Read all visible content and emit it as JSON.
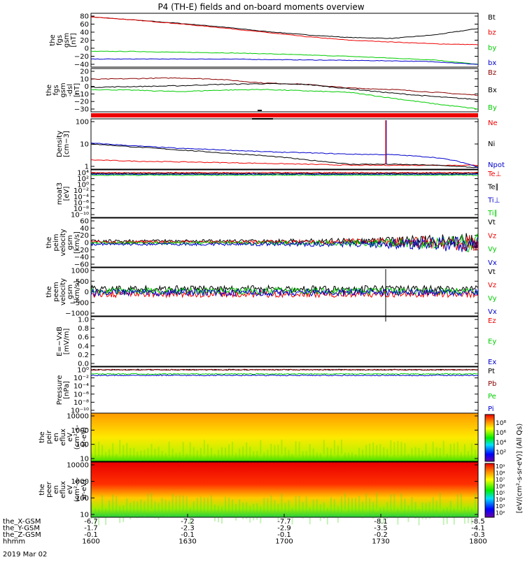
{
  "title": "P4 (TH-E) fields and on-board moments overview",
  "colors": {
    "black": "#000000",
    "red": "#ee0000",
    "green": "#00cc00",
    "blue": "#0000cc",
    "darkred": "#8b0000"
  },
  "chart_data": [
    {
      "type": "line",
      "ylabel": [
        "the",
        "fgs",
        "gsm",
        "[nT]"
      ],
      "yticks": [
        "80",
        "60",
        "40",
        "20",
        "0",
        "−20",
        "−40"
      ],
      "ylim": [
        -40,
        80
      ],
      "series": [
        {
          "name": "Bt",
          "color": "black",
          "values": [
            72,
            65,
            58,
            50,
            40,
            32,
            26,
            24,
            32,
            46
          ]
        },
        {
          "name": "bz",
          "color": "red",
          "values": [
            72,
            65,
            57,
            48,
            38,
            28,
            20,
            16,
            12,
            10
          ]
        },
        {
          "name": "by",
          "color": "green",
          "values": [
            -5,
            -5,
            -7,
            -8,
            -10,
            -13,
            -16,
            -20,
            -24,
            -34
          ]
        },
        {
          "name": "bx",
          "color": "blue",
          "values": [
            -22,
            -22,
            -22,
            -22,
            -23,
            -24,
            -25,
            -26,
            -28,
            -34
          ]
        }
      ]
    },
    {
      "type": "line",
      "ylabel": [
        "the",
        "fgs",
        "gsm",
        "-dsl",
        "[nT]"
      ],
      "yticks": [
        "20",
        "10",
        "0",
        "−10",
        "−20",
        "−30"
      ],
      "ylim": [
        -35,
        25
      ],
      "series": [
        {
          "name": "Bz",
          "color": "darkred",
          "values": [
            10,
            11,
            12,
            10,
            5,
            3,
            -2,
            -4,
            -8,
            -12
          ]
        },
        {
          "name": "Bx",
          "color": "black",
          "values": [
            -1,
            0,
            1,
            3,
            4,
            3,
            -3,
            -9,
            -14,
            -18
          ]
        },
        {
          "name": "By",
          "color": "green",
          "values": [
            -4,
            -5,
            -7,
            -5,
            -4,
            -6,
            -8,
            -16,
            -24,
            -31
          ]
        }
      ]
    },
    {
      "type": "line",
      "scale": "log",
      "ylabel": [
        "Density",
        "[cm−3]"
      ],
      "yticks": [
        "100",
        "10",
        "1"
      ],
      "series": [
        {
          "name": "Ne",
          "color": "red",
          "values": [
            1.5,
            1.3,
            1.2,
            1.1,
            1.0,
            0.9,
            0.8,
            0.8,
            0.8,
            0.8
          ]
        },
        {
          "name": "Ni",
          "color": "black",
          "values": [
            10,
            7,
            5,
            3.5,
            2.5,
            1.5,
            0.9,
            0.9,
            0.8,
            0.6
          ]
        },
        {
          "name": "Npot",
          "color": "blue",
          "values": [
            11,
            8,
            6,
            5,
            4,
            3.5,
            3,
            2.8,
            2,
            0.6
          ]
        }
      ]
    },
    {
      "type": "line",
      "scale": "log",
      "ylabel": [
        "moat3",
        "[eV]"
      ],
      "yticks": [
        "10⁴",
        "10²",
        "10⁰",
        "10⁻²",
        "10⁻⁴",
        "10⁻⁶",
        "10⁻⁸",
        "10⁻¹⁰"
      ],
      "series": [
        {
          "name": "Te⊥",
          "color": "red"
        },
        {
          "name": "Te∥",
          "color": "black"
        },
        {
          "name": "Ti⊥",
          "color": "blue"
        },
        {
          "name": "Ti∥",
          "color": "green"
        }
      ]
    },
    {
      "type": "line",
      "ylabel": [
        "the",
        "peim",
        "velocity",
        "gsm",
        "[km/s]"
      ],
      "yticks": [
        "60",
        "40",
        "20",
        "0",
        "−20",
        "−40",
        "−60"
      ],
      "ylim": [
        -60,
        60
      ],
      "series": [
        {
          "name": "Vt",
          "color": "black"
        },
        {
          "name": "Vz",
          "color": "red"
        },
        {
          "name": "Vy",
          "color": "green"
        },
        {
          "name": "Vx",
          "color": "blue"
        }
      ]
    },
    {
      "type": "line",
      "ylabel": [
        "the",
        "peem",
        "velocity",
        "gsm",
        "[km/s]"
      ],
      "yticks": [
        "1000",
        "500",
        "0",
        "−500",
        "−1000"
      ],
      "ylim": [
        -1000,
        1000
      ],
      "series": [
        {
          "name": "Vt",
          "color": "black"
        },
        {
          "name": "Vz",
          "color": "red"
        },
        {
          "name": "Vy",
          "color": "green"
        },
        {
          "name": "Vx",
          "color": "blue"
        }
      ]
    },
    {
      "type": "line",
      "ylabel": [
        "E=−VxB",
        "[mV/m]"
      ],
      "yticks": [
        "1.0",
        "0.8",
        "0.6",
        "0.4",
        "0.2",
        "0.0"
      ],
      "ylim": [
        0,
        1
      ],
      "series": [
        {
          "name": "Ez",
          "color": "red"
        },
        {
          "name": "Ey",
          "color": "green"
        },
        {
          "name": "Ex",
          "color": "blue"
        }
      ]
    },
    {
      "type": "line",
      "scale": "log",
      "ylabel": [
        "Pressure",
        "[nPa]"
      ],
      "yticks": [
        "10⁰",
        "10⁻²",
        "10⁻⁴",
        "10⁻⁶",
        "10⁻⁸",
        "10⁻¹⁰"
      ],
      "series": [
        {
          "name": "Pt",
          "color": "black"
        },
        {
          "name": "Pb",
          "color": "darkred"
        },
        {
          "name": "Pe",
          "color": "green"
        },
        {
          "name": "Pi",
          "color": "blue"
        }
      ]
    },
    {
      "type": "heatmap",
      "ylabel": [
        "the",
        "peir",
        "en",
        "eflux",
        "eV",
        "(cm²-s-",
        "sr-eV)"
      ],
      "yticks": [
        "10000",
        "1000",
        "100",
        "10"
      ]
    },
    {
      "type": "heatmap",
      "ylabel": [
        "the",
        "peer",
        "en",
        "eflux",
        "eV",
        "(cm²-s-",
        "sr-eV)"
      ],
      "yticks": [
        "10000",
        "1000",
        "100",
        "10"
      ]
    }
  ],
  "colorbar": {
    "label": "[eV/(cm²-s-sr-eV)] (All Qs)",
    "upper_ticks": [
      "10⁸",
      "10⁶",
      "10⁴",
      "10²"
    ],
    "lower_ticks": [
      "10⁹",
      "10⁸",
      "10⁷",
      "10⁶",
      "10⁵",
      "10⁴",
      "10³",
      "10²"
    ]
  },
  "x_axis": {
    "rows": [
      {
        "label": "the_X-GSM",
        "values": [
          "-6.7",
          "-7.2",
          "-7.7",
          "-8.1",
          "-8.5"
        ]
      },
      {
        "label": "the_Y-GSM",
        "values": [
          "-1.7",
          "-2.3",
          "-2.9",
          "-3.5",
          "-4.1"
        ]
      },
      {
        "label": "the_Z-GSM",
        "values": [
          "-0.1",
          "-0.1",
          "-0.1",
          "-0.2",
          "-0.3"
        ]
      },
      {
        "label": "hhmm",
        "values": [
          "1600",
          "1630",
          "1700",
          "1730",
          "1800"
        ]
      }
    ],
    "date": "2019 Mar 02"
  }
}
